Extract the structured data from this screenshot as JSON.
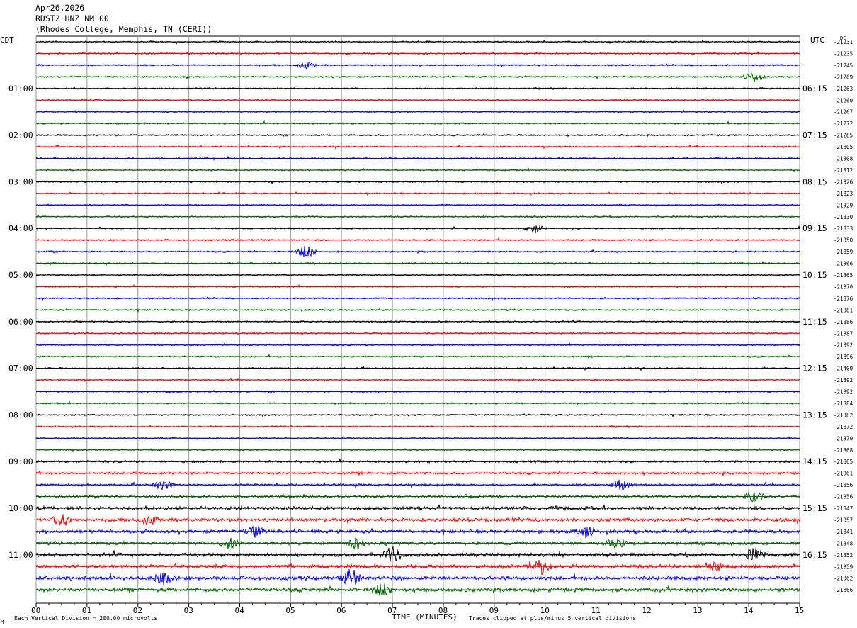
{
  "header": {
    "date": "Apr26,2026",
    "station": "RDST2 HNZ NM 00",
    "location": "(Rhodes College, Memphis, TN (CERI))"
  },
  "footer": {
    "scale_note": "Each Vertical Division =  200.00 microvolts",
    "clip_note": "Traces clipped at plus/minus 5 vertical divisions"
  },
  "chart_data": {
    "type": "line",
    "title": "RDST2 HNZ NM 00",
    "xlabel": "TIME (MINUTES)",
    "ylabel_left": "CDT",
    "ylabel_right": "UTC",
    "dc_label": "DC",
    "xlim": [
      0,
      15
    ],
    "x_ticks": [
      "00",
      "01",
      "02",
      "03",
      "04",
      "05",
      "06",
      "07",
      "08",
      "09",
      "10",
      "11",
      "12",
      "13",
      "14",
      "15"
    ],
    "rows_per_hour": 4,
    "trace_colors": [
      "#000000",
      "#ff0000",
      "#0000ff",
      "#006400"
    ],
    "left_hour_labels": [
      "01:00",
      "02:00",
      "03:00",
      "04:00",
      "05:00",
      "06:00",
      "07:00",
      "08:00",
      "09:00",
      "10:00",
      "11:00"
    ],
    "right_hour_labels": [
      "06:15",
      "07:15",
      "08:15",
      "09:15",
      "10:15",
      "11:15",
      "12:15",
      "13:15",
      "14:15",
      "15:15",
      "16:15"
    ],
    "dc_offsets": [
      "-21231",
      "-21235",
      "-21245",
      "-21269",
      "-21263",
      "-21260",
      "-21267",
      "-21272",
      "-21285",
      "-21305",
      "-21308",
      "-21312",
      "-21326",
      "-21323",
      "-21329",
      "-21330",
      "-21333",
      "-21350",
      "-21359",
      "-21366",
      "-21365",
      "-21370",
      "-21376",
      "-21381",
      "-21386",
      "-21387",
      "-21392",
      "-21396",
      "-21400",
      "-21392",
      "-21392",
      "-21384",
      "-21382",
      "-21372",
      "-21370",
      "-21368",
      "-21365",
      "-21361",
      "-21356",
      "-21356",
      "-21347",
      "-21357",
      "-21341",
      "-21348",
      "-21352",
      "-21359",
      "-21362",
      "-21366"
    ],
    "events": [
      {
        "row": 18,
        "minute": 5.3,
        "amp": 1.0
      },
      {
        "row": 16,
        "minute": 9.8,
        "amp": 0.7
      },
      {
        "row": 2,
        "minute": 5.3,
        "amp": 0.6
      },
      {
        "row": 3,
        "minute": 14.1,
        "amp": 0.8
      },
      {
        "row": 38,
        "minute": 2.5,
        "amp": 0.7
      },
      {
        "row": 38,
        "minute": 11.5,
        "amp": 0.8
      },
      {
        "row": 39,
        "minute": 14.1,
        "amp": 0.9
      },
      {
        "row": 41,
        "minute": 0.5,
        "amp": 1.0
      },
      {
        "row": 41,
        "minute": 2.2,
        "amp": 0.8
      },
      {
        "row": 42,
        "minute": 4.3,
        "amp": 0.8
      },
      {
        "row": 42,
        "minute": 10.8,
        "amp": 0.8
      },
      {
        "row": 43,
        "minute": 3.8,
        "amp": 0.9
      },
      {
        "row": 43,
        "minute": 6.3,
        "amp": 0.8
      },
      {
        "row": 43,
        "minute": 11.4,
        "amp": 0.8
      },
      {
        "row": 44,
        "minute": 7.0,
        "amp": 1.2
      },
      {
        "row": 44,
        "minute": 14.1,
        "amp": 0.8
      },
      {
        "row": 45,
        "minute": 9.9,
        "amp": 1.3
      },
      {
        "row": 45,
        "minute": 13.3,
        "amp": 0.8
      },
      {
        "row": 46,
        "minute": 6.2,
        "amp": 1.5
      },
      {
        "row": 46,
        "minute": 2.5,
        "amp": 0.9
      },
      {
        "row": 47,
        "minute": 6.8,
        "amp": 1.0
      }
    ]
  }
}
